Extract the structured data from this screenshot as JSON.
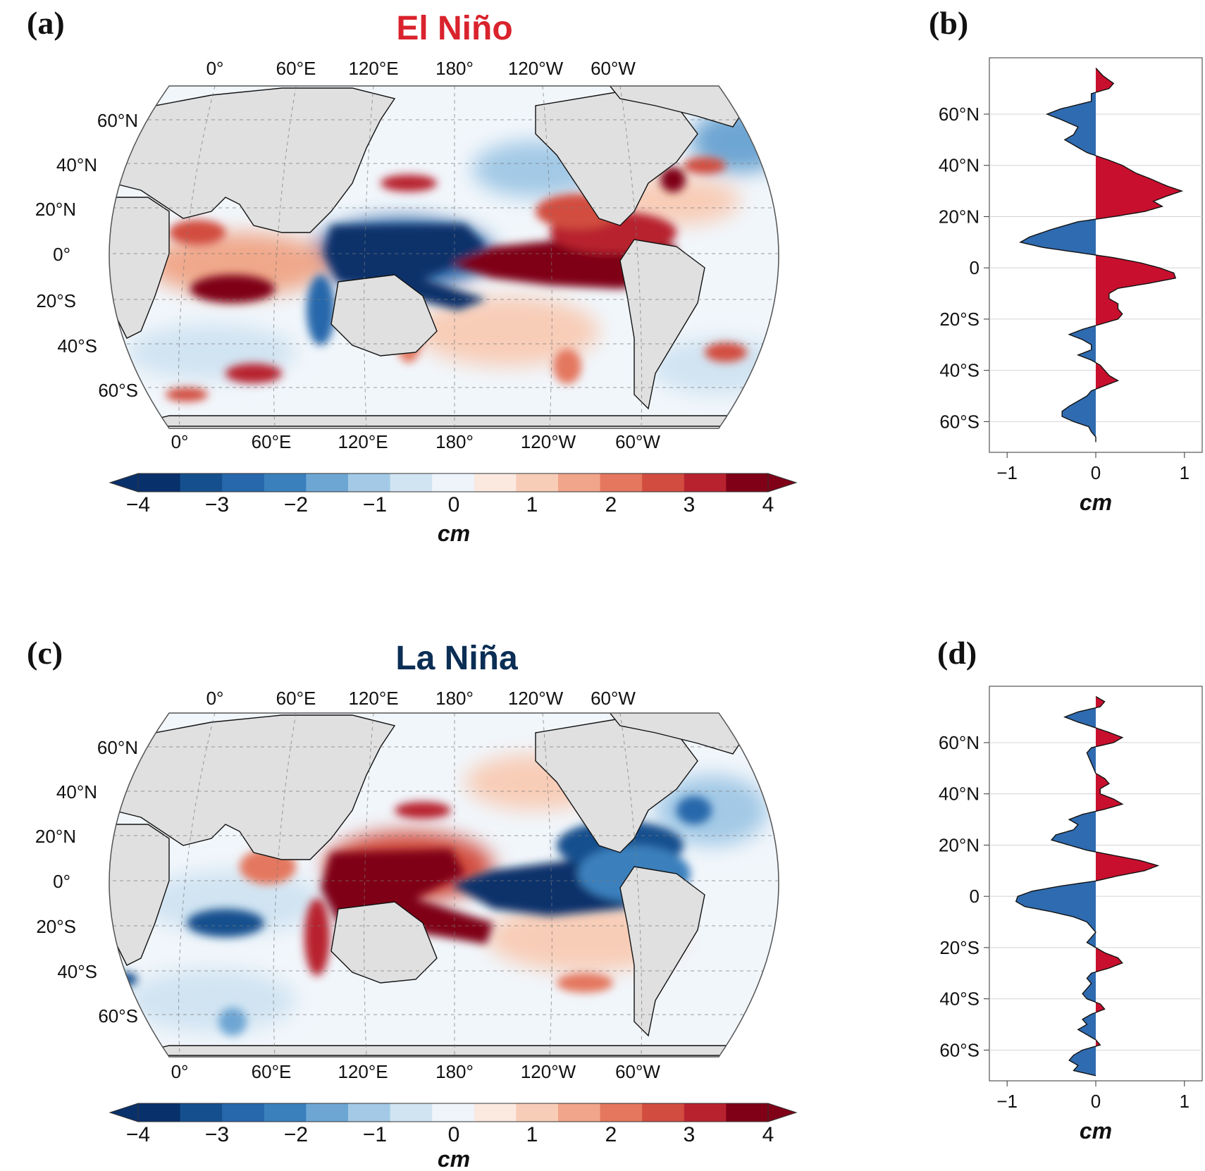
{
  "colors": {
    "positive": "#c8102e",
    "negative": "#2f6bb0",
    "land": "#e0e0e0",
    "title_el_nino": "#d9232d",
    "title_la_nina": "#0b2e55",
    "colorbar_levels": [
      "#08306b",
      "#164f8e",
      "#2767ab",
      "#3a80bd",
      "#6ea6d3",
      "#a3c9e6",
      "#d1e4f2",
      "#eef4fa",
      "#fbe9e0",
      "#f8cdb8",
      "#f1a58a",
      "#e4775e",
      "#d24d40",
      "#b8222f",
      "#7f0017"
    ]
  },
  "panels": {
    "a": {
      "label": "(a)",
      "title": "El Niño",
      "top_lon_labels": [
        "0°",
        "60°E",
        "120°E",
        "180°",
        "120°W",
        "60°W"
      ],
      "bottom_lon_labels": [
        "0°",
        "60°E",
        "120°E",
        "180°",
        "120°W",
        "60°W"
      ],
      "lat_labels": [
        "60°N",
        "40°N",
        "20°N",
        "0°",
        "20°S",
        "40°S",
        "60°S"
      ],
      "colorbar": {
        "ticks": [
          "−4",
          "−3",
          "−2",
          "−1",
          "0",
          "1",
          "2",
          "3",
          "4"
        ],
        "unit": "cm",
        "range": [
          -4,
          4
        ]
      }
    },
    "b": {
      "label": "(b)",
      "lat_labels": [
        "60°N",
        "40°N",
        "20°N",
        "0",
        "20°S",
        "40°S",
        "60°S"
      ],
      "x_ticks": [
        "−1",
        "0",
        "1"
      ],
      "xlabel": "cm"
    },
    "c": {
      "label": "(c)",
      "title": "La Niña",
      "top_lon_labels": [
        "0°",
        "60°E",
        "120°E",
        "180°",
        "120°W",
        "60°W"
      ],
      "bottom_lon_labels": [
        "0°",
        "60°E",
        "120°E",
        "180°",
        "120°W",
        "60°W"
      ],
      "lat_labels": [
        "60°N",
        "40°N",
        "20°N",
        "0°",
        "20°S",
        "40°S",
        "60°S"
      ],
      "colorbar": {
        "ticks": [
          "−4",
          "−3",
          "−2",
          "−1",
          "0",
          "1",
          "2",
          "3",
          "4"
        ],
        "unit": "cm",
        "range": [
          -4,
          4
        ]
      }
    },
    "d": {
      "label": "(d)",
      "lat_labels": [
        "60°N",
        "40°N",
        "20°N",
        "0",
        "20°S",
        "40°S",
        "60°S"
      ],
      "x_ticks": [
        "−1",
        "0",
        "1"
      ],
      "xlabel": "cm"
    }
  },
  "chart_data": [
    {
      "type": "area",
      "panel": "b",
      "description_units": "zonal-mean anomaly (cm) vs latitude",
      "xlim": [
        -1.2,
        1.2
      ],
      "ylim": [
        -72,
        82
      ],
      "points": [
        [
          78,
          0.0
        ],
        [
          75,
          0.08
        ],
        [
          72,
          0.2
        ],
        [
          70,
          0.15
        ],
        [
          68,
          -0.05
        ],
        [
          65,
          -0.05
        ],
        [
          62,
          -0.4
        ],
        [
          60,
          -0.55
        ],
        [
          58,
          -0.4
        ],
        [
          55,
          -0.2
        ],
        [
          52,
          -0.25
        ],
        [
          50,
          -0.35
        ],
        [
          48,
          -0.25
        ],
        [
          45,
          -0.1
        ],
        [
          42,
          0.15
        ],
        [
          40,
          0.3
        ],
        [
          37,
          0.45
        ],
        [
          35,
          0.6
        ],
        [
          32,
          0.8
        ],
        [
          30,
          0.97
        ],
        [
          28,
          0.8
        ],
        [
          26,
          0.65
        ],
        [
          24,
          0.75
        ],
        [
          22,
          0.55
        ],
        [
          20,
          0.2
        ],
        [
          18,
          -0.2
        ],
        [
          15,
          -0.5
        ],
        [
          12,
          -0.75
        ],
        [
          10,
          -0.85
        ],
        [
          8,
          -0.6
        ],
        [
          6,
          -0.2
        ],
        [
          4,
          0.2
        ],
        [
          2,
          0.5
        ],
        [
          0,
          0.72
        ],
        [
          -2,
          0.88
        ],
        [
          -4,
          0.9
        ],
        [
          -6,
          0.6
        ],
        [
          -8,
          0.25
        ],
        [
          -10,
          0.15
        ],
        [
          -12,
          0.15
        ],
        [
          -14,
          0.25
        ],
        [
          -16,
          0.25
        ],
        [
          -18,
          0.3
        ],
        [
          -20,
          0.25
        ],
        [
          -22,
          0.05
        ],
        [
          -24,
          -0.15
        ],
        [
          -26,
          -0.3
        ],
        [
          -28,
          -0.15
        ],
        [
          -30,
          -0.05
        ],
        [
          -32,
          -0.05
        ],
        [
          -34,
          -0.2
        ],
        [
          -36,
          -0.05
        ],
        [
          -38,
          0.05
        ],
        [
          -40,
          0.1
        ],
        [
          -42,
          0.15
        ],
        [
          -44,
          0.25
        ],
        [
          -46,
          0.1
        ],
        [
          -48,
          -0.05
        ],
        [
          -50,
          -0.1
        ],
        [
          -52,
          -0.2
        ],
        [
          -54,
          -0.3
        ],
        [
          -56,
          -0.38
        ],
        [
          -58,
          -0.38
        ],
        [
          -60,
          -0.25
        ],
        [
          -62,
          -0.08
        ],
        [
          -64,
          -0.05
        ],
        [
          -66,
          0.0
        ],
        [
          -68,
          0.0
        ]
      ]
    },
    {
      "type": "area",
      "panel": "d",
      "description_units": "zonal-mean anomaly (cm) vs latitude",
      "xlim": [
        -1.2,
        1.2
      ],
      "ylim": [
        -72,
        82
      ],
      "points": [
        [
          78,
          0.0
        ],
        [
          76,
          0.1
        ],
        [
          74,
          0.05
        ],
        [
          72,
          -0.2
        ],
        [
          70,
          -0.35
        ],
        [
          68,
          -0.2
        ],
        [
          66,
          -0.02
        ],
        [
          64,
          0.15
        ],
        [
          62,
          0.3
        ],
        [
          60,
          0.2
        ],
        [
          58,
          -0.05
        ],
        [
          56,
          -0.1
        ],
        [
          52,
          -0.05
        ],
        [
          48,
          0.0
        ],
        [
          46,
          0.1
        ],
        [
          44,
          0.15
        ],
        [
          42,
          0.05
        ],
        [
          40,
          0.05
        ],
        [
          38,
          0.2
        ],
        [
          36,
          0.3
        ],
        [
          34,
          0.1
        ],
        [
          32,
          -0.15
        ],
        [
          30,
          -0.3
        ],
        [
          28,
          -0.2
        ],
        [
          26,
          -0.25
        ],
        [
          24,
          -0.45
        ],
        [
          22,
          -0.5
        ],
        [
          20,
          -0.3
        ],
        [
          18,
          -0.1
        ],
        [
          16,
          0.2
        ],
        [
          14,
          0.5
        ],
        [
          12,
          0.7
        ],
        [
          10,
          0.55
        ],
        [
          8,
          0.25
        ],
        [
          6,
          0.0
        ],
        [
          4,
          -0.4
        ],
        [
          2,
          -0.72
        ],
        [
          0,
          -0.88
        ],
        [
          -2,
          -0.9
        ],
        [
          -4,
          -0.8
        ],
        [
          -6,
          -0.5
        ],
        [
          -8,
          -0.25
        ],
        [
          -10,
          -0.1
        ],
        [
          -12,
          -0.05
        ],
        [
          -14,
          0.0
        ],
        [
          -16,
          -0.05
        ],
        [
          -18,
          -0.1
        ],
        [
          -20,
          0.0
        ],
        [
          -22,
          0.1
        ],
        [
          -24,
          0.25
        ],
        [
          -26,
          0.3
        ],
        [
          -28,
          0.15
        ],
        [
          -30,
          -0.05
        ],
        [
          -32,
          -0.1
        ],
        [
          -34,
          -0.05
        ],
        [
          -36,
          -0.1
        ],
        [
          -38,
          -0.15
        ],
        [
          -40,
          -0.1
        ],
        [
          -42,
          0.05
        ],
        [
          -44,
          0.1
        ],
        [
          -46,
          -0.05
        ],
        [
          -48,
          -0.15
        ],
        [
          -50,
          -0.1
        ],
        [
          -52,
          -0.2
        ],
        [
          -54,
          -0.1
        ],
        [
          -56,
          0.0
        ],
        [
          -58,
          0.05
        ],
        [
          -60,
          -0.15
        ],
        [
          -62,
          -0.25
        ],
        [
          -64,
          -0.3
        ],
        [
          -66,
          -0.2
        ],
        [
          -68,
          -0.25
        ],
        [
          -70,
          0.0
        ]
      ]
    }
  ]
}
